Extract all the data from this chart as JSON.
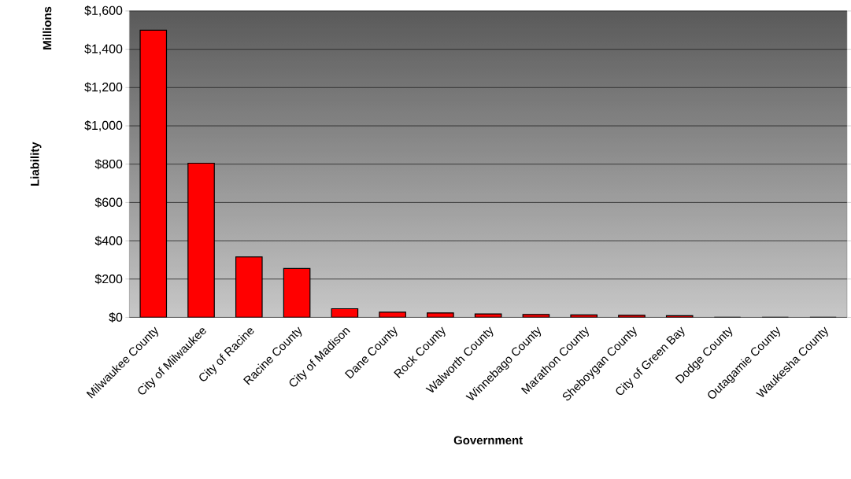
{
  "chart_data": {
    "type": "bar",
    "xlabel": "Government",
    "ylabel": "Liability",
    "subtitle": "Millions",
    "categories": [
      "Milwaukee County",
      "City of Milwaukee",
      "City of Racine",
      "Racine County",
      "City of Madison",
      "Dane County",
      "Rock County",
      "Walworth County",
      "Winnebago County",
      "Marathon County",
      "Sheboygan County",
      "City of Green Bay",
      "Dodge County",
      "Outagamie County",
      "Waukesha County"
    ],
    "values": [
      1500,
      805,
      316,
      255,
      45,
      27,
      23,
      18,
      15,
      13,
      11,
      9,
      0,
      0,
      0
    ],
    "color": "#ff0000",
    "ylim": [
      0,
      1600
    ],
    "yticks": [
      {
        "value": 0,
        "label": "$0"
      },
      {
        "value": 200,
        "label": "$200"
      },
      {
        "value": 400,
        "label": "$400"
      },
      {
        "value": 600,
        "label": "$600"
      },
      {
        "value": 800,
        "label": "$800"
      },
      {
        "value": 1000,
        "label": "$1,000"
      },
      {
        "value": 1200,
        "label": "$1,200"
      },
      {
        "value": 1400,
        "label": "$1,400"
      },
      {
        "value": 1600,
        "label": "$1,600"
      }
    ],
    "grid": "y"
  }
}
